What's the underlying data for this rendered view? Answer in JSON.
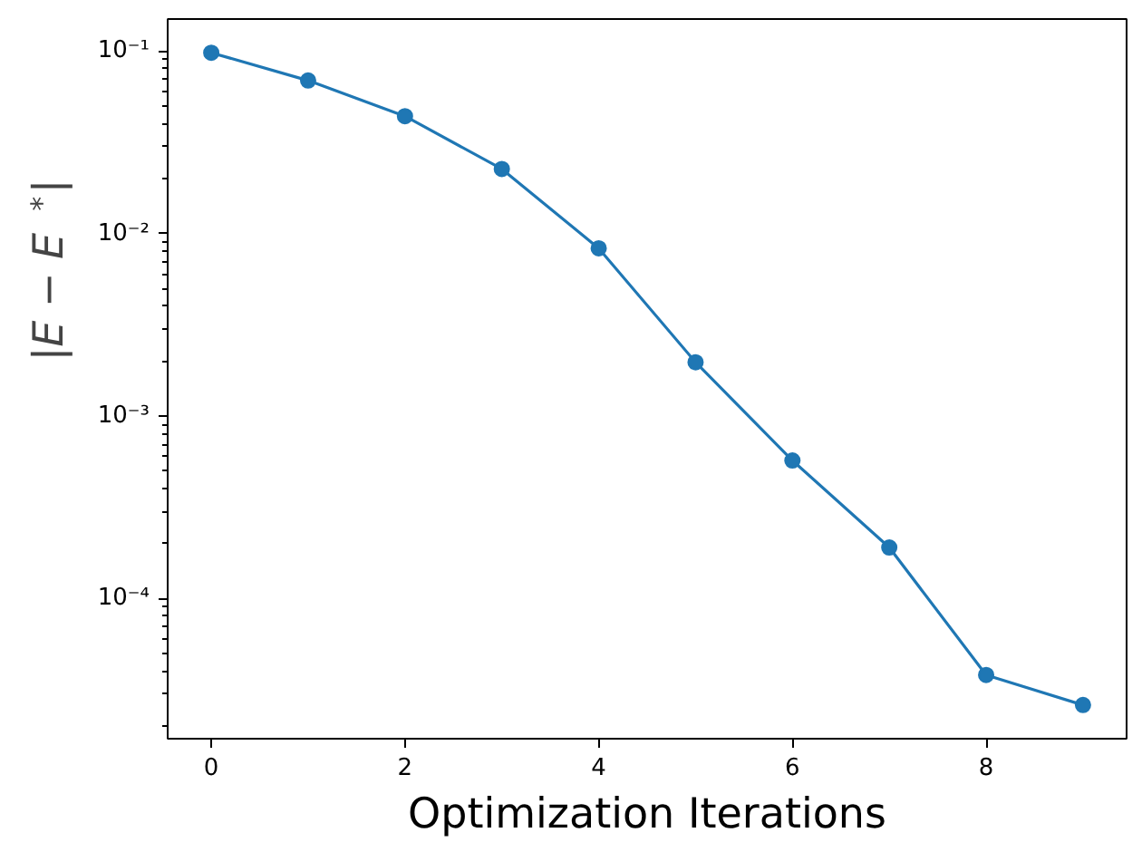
{
  "chart_data": {
    "type": "line",
    "xlabel": "Optimization Iterations",
    "ylabel": "|E − E$^{*}$|",
    "x": [
      0,
      1,
      2,
      3,
      4,
      5,
      6,
      7,
      8,
      9
    ],
    "series": [
      {
        "color": "#1f77b4",
        "values": [
          0.098,
          0.069,
          0.044,
          0.0226,
          0.0083,
          0.00197,
          0.00057,
          0.00019,
          3.8e-05,
          2.6e-05
        ]
      }
    ],
    "log": "y",
    "xlim": [
      -0.45,
      9.45
    ],
    "ylim": [
      1.7e-05,
      0.15
    ],
    "xticks": [
      0,
      2,
      4,
      6,
      8
    ],
    "yticks": [
      {
        "value": 0.1,
        "label": "10⁻¹"
      },
      {
        "value": 0.01,
        "label": "10⁻²"
      },
      {
        "value": 0.001,
        "label": "10⁻³"
      },
      {
        "value": 0.0001,
        "label": "10⁻⁴"
      }
    ],
    "marker": "circle",
    "line_style": "solid",
    "grid": false
  }
}
